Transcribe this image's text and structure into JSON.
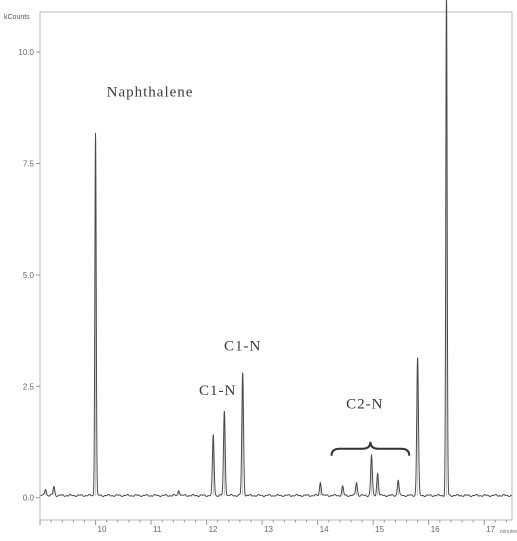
{
  "chart_data": {
    "type": "line",
    "y_unit_label": "kCounts",
    "x_unit_label": "minutes",
    "xlim": [
      9.0,
      17.5
    ],
    "ylim": [
      -0.5,
      10.9
    ],
    "x_ticks": [
      10,
      11,
      12,
      13,
      14,
      15,
      16,
      17
    ],
    "y_ticks": [
      0.0,
      2.5,
      5.0,
      7.5,
      10.0
    ],
    "x_tick_labels": [
      "10",
      "11",
      "12",
      "13",
      "14",
      "15",
      "16",
      "17"
    ],
    "y_tick_labels": [
      "0.0",
      "2.5",
      "5.0",
      "7.5",
      "10.0"
    ],
    "grid": false,
    "baseline": 0.05,
    "peaks": [
      {
        "x": 9.1,
        "height": 0.15
      },
      {
        "x": 9.25,
        "height": 0.2
      },
      {
        "x": 10.0,
        "height": 8.15
      },
      {
        "x": 11.5,
        "height": 0.12
      },
      {
        "x": 12.12,
        "height": 1.35
      },
      {
        "x": 12.32,
        "height": 1.9
      },
      {
        "x": 12.65,
        "height": 2.75
      },
      {
        "x": 14.05,
        "height": 0.3
      },
      {
        "x": 14.45,
        "height": 0.2
      },
      {
        "x": 14.7,
        "height": 0.3
      },
      {
        "x": 14.97,
        "height": 0.9
      },
      {
        "x": 15.08,
        "height": 0.5
      },
      {
        "x": 15.45,
        "height": 0.35
      },
      {
        "x": 15.8,
        "height": 3.1
      },
      {
        "x": 16.32,
        "height": 11.5
      }
    ],
    "annotations": [
      {
        "text": "Naphthalene",
        "x": 10.2,
        "y": 9.0
      },
      {
        "text": "C1-N",
        "x": 12.2,
        "y": 2.3
      },
      {
        "text": "C1-N",
        "x": 12.65,
        "y": 3.3
      },
      {
        "text": "C2-N",
        "x": 14.85,
        "y": 2.0
      }
    ],
    "brace": {
      "x_start": 14.25,
      "x_end": 15.65,
      "y": 1.1
    }
  }
}
